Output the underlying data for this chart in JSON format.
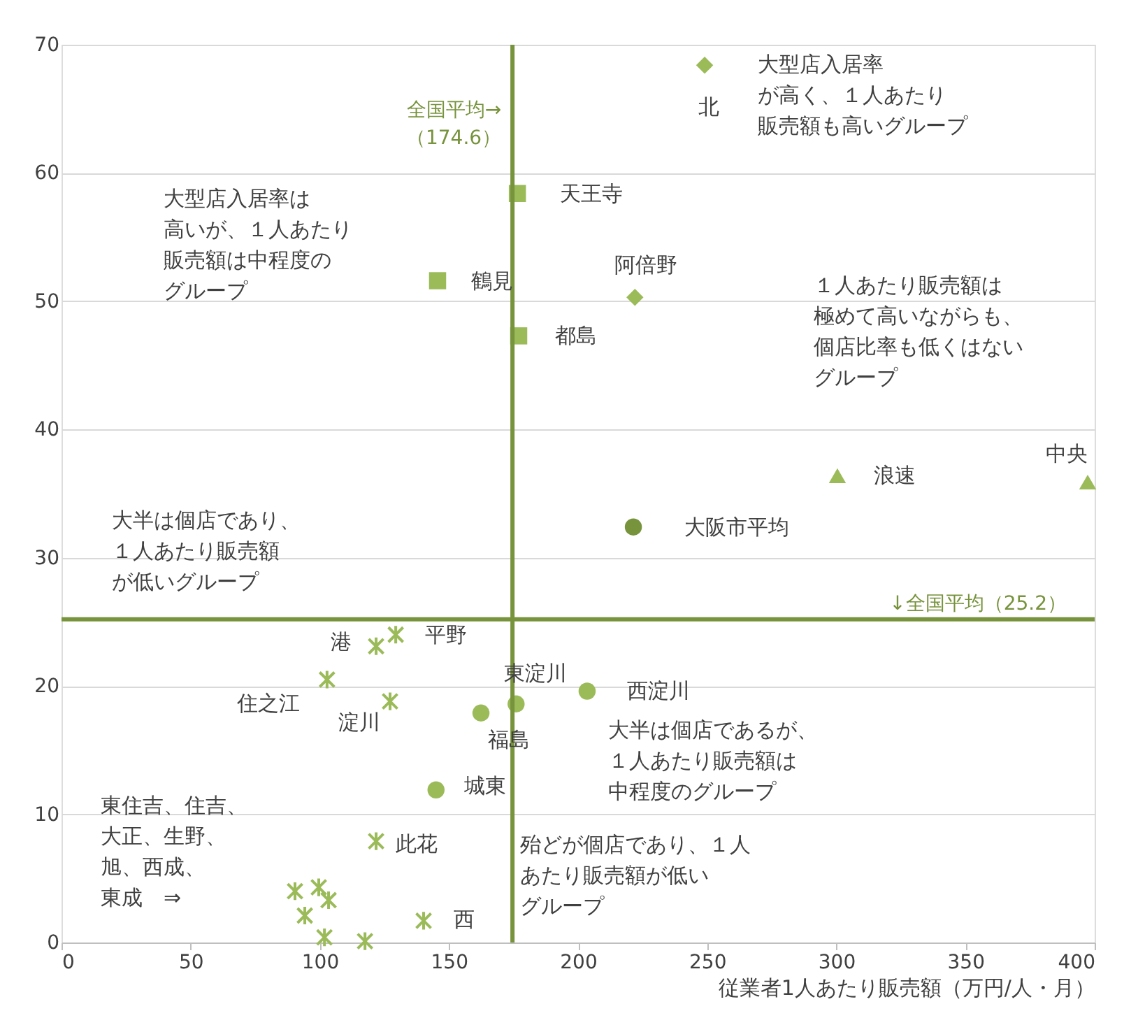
{
  "chart_data": {
    "type": "scatter",
    "xlabel": "従業者1人あたり販売額（万円/人・月）",
    "xlim": [
      0,
      400
    ],
    "ylim": [
      0,
      70
    ],
    "xticks": [
      0,
      50,
      100,
      150,
      200,
      250,
      300,
      350,
      400
    ],
    "yticks": [
      0,
      10,
      20,
      30,
      40,
      50,
      60,
      70
    ],
    "grid": "y",
    "series": [
      {
        "marker": "diamond",
        "color": "#9bbb59",
        "x": [
          249,
          222
        ],
        "values": [
          68.4,
          50.3
        ]
      },
      {
        "marker": "square",
        "color": "#9bbb59",
        "x": [
          176.5,
          145.6,
          177
        ],
        "values": [
          58.4,
          51.6,
          47.3
        ]
      },
      {
        "marker": "triangle",
        "color": "#9bbb59",
        "x": [
          300.4,
          397.3
        ],
        "values": [
          36.4,
          35.9
        ]
      },
      {
        "marker": "circle",
        "color": "#77933c",
        "x": [
          221.4
        ],
        "values": [
          32.4
        ]
      },
      {
        "marker": "circle",
        "color": "#9bbb59",
        "x": [
          203.5,
          176,
          162.4,
          145
        ],
        "values": [
          19.6,
          18.6,
          17.9,
          11.9
        ]
      },
      {
        "marker": "cross",
        "color": "#9bbb59",
        "x": [
          129.4,
          121.8,
          102.8,
          127.2,
          121.8,
          140.2,
          90.4,
          99.6,
          94.2,
          103.4,
          101.8,
          117.5
        ],
        "values": [
          24.0,
          23.1,
          20.5,
          18.8,
          7.9,
          1.7,
          4.0,
          4.3,
          2.1,
          3.3,
          0.4,
          0.1
        ]
      }
    ],
    "ref_lines": [
      {
        "axis": "x",
        "value": 174.6,
        "label": "全国平均→（174.6）",
        "color": "#77933c"
      },
      {
        "axis": "y",
        "value": 25.2,
        "label": "↓全国平均（25.2）",
        "color": "#77933c"
      }
    ],
    "annotations": [
      {
        "text": "北",
        "x": 249,
        "y": 68.4
      },
      {
        "text": "天王寺",
        "x": 176.5,
        "y": 58.4
      },
      {
        "text": "鶴見",
        "x": 145.6,
        "y": 51.6
      },
      {
        "text": "都島",
        "x": 177,
        "y": 47.3
      },
      {
        "text": "阿倍野",
        "x": 222,
        "y": 50.3
      },
      {
        "text": "浪速",
        "x": 300.4,
        "y": 36.4
      },
      {
        "text": "中央",
        "x": 397.3,
        "y": 35.9
      },
      {
        "text": "大阪市平均",
        "x": 221.4,
        "y": 32.4
      },
      {
        "text": "港",
        "x": 121.8,
        "y": 23.1
      },
      {
        "text": "平野",
        "x": 129.4,
        "y": 24.0
      },
      {
        "text": "住之江",
        "x": 102.8,
        "y": 20.5
      },
      {
        "text": "淀川",
        "x": 127.2,
        "y": 18.8
      },
      {
        "text": "東淀川",
        "x": 176,
        "y": 18.6
      },
      {
        "text": "西淀川",
        "x": 203.5,
        "y": 19.6
      },
      {
        "text": "福島",
        "x": 162.4,
        "y": 17.9
      },
      {
        "text": "城東",
        "x": 145,
        "y": 11.9
      },
      {
        "text": "此花",
        "x": 121.8,
        "y": 7.9
      },
      {
        "text": "西",
        "x": 140.2,
        "y": 1.7
      },
      "大型店入居率が高く、１人あたり販売額も高いグループ",
      "大型店入居率は高いが、１人あたり販売額は中程度のグループ",
      "１人あたり販売額は極めて高いながらも、個店比率も低くはないグループ",
      "大半は個店であり、１人あたり販売額が低いグループ",
      "大半は個店であるが、１人あたり販売額は中程度のグループ",
      "東住吉、住吉、大正、生野、旭、西成、東成　⇒",
      "殆どが個店であり、１人あたり販売額が低いグループ"
    ]
  }
}
